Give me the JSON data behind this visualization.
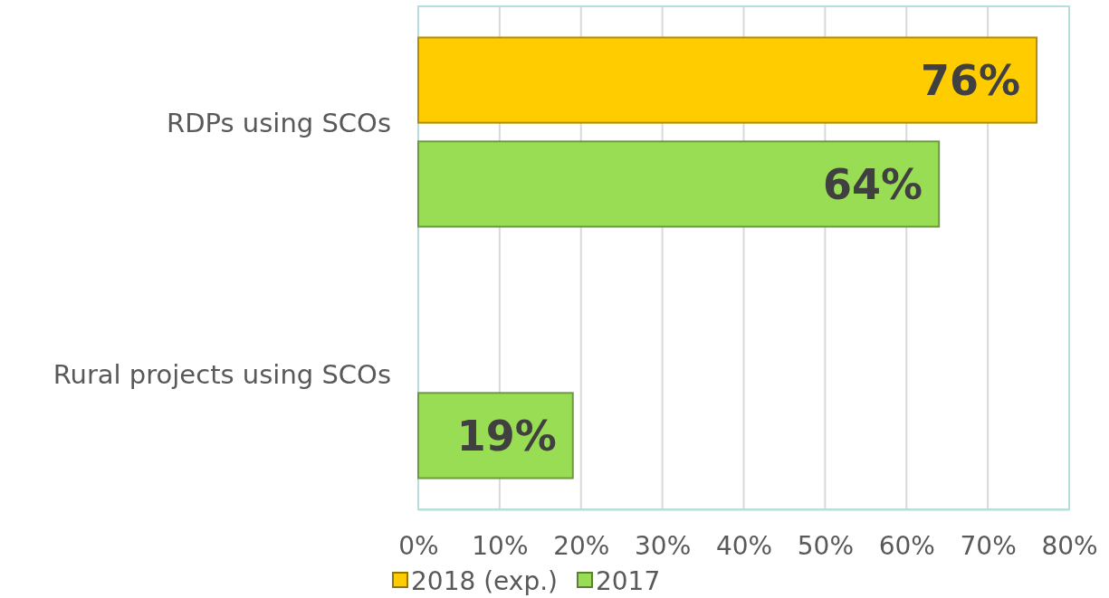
{
  "chart_data": {
    "type": "bar",
    "orientation": "horizontal",
    "categories": [
      "RDPs using SCOs",
      "Rural projects using SCOs"
    ],
    "series": [
      {
        "name": "2018 (exp.)",
        "color": "#ffcc00",
        "values": [
          76,
          null
        ]
      },
      {
        "name": "2017",
        "color": "#99dd55",
        "values": [
          64,
          19
        ]
      }
    ],
    "xlim": [
      0,
      80
    ],
    "xticks": [
      {
        "value": 0,
        "label": "0%"
      },
      {
        "value": 10,
        "label": "10%"
      },
      {
        "value": 20,
        "label": "20%"
      },
      {
        "value": 30,
        "label": "30%"
      },
      {
        "value": 40,
        "label": "40%"
      },
      {
        "value": 50,
        "label": "50%"
      },
      {
        "value": 60,
        "label": "60%"
      },
      {
        "value": 70,
        "label": "70%"
      },
      {
        "value": 80,
        "label": "80%"
      }
    ],
    "value_labels": [
      [
        "76%",
        null
      ],
      [
        "64%",
        "19%"
      ]
    ],
    "grid": "x",
    "legend": "bottom"
  }
}
